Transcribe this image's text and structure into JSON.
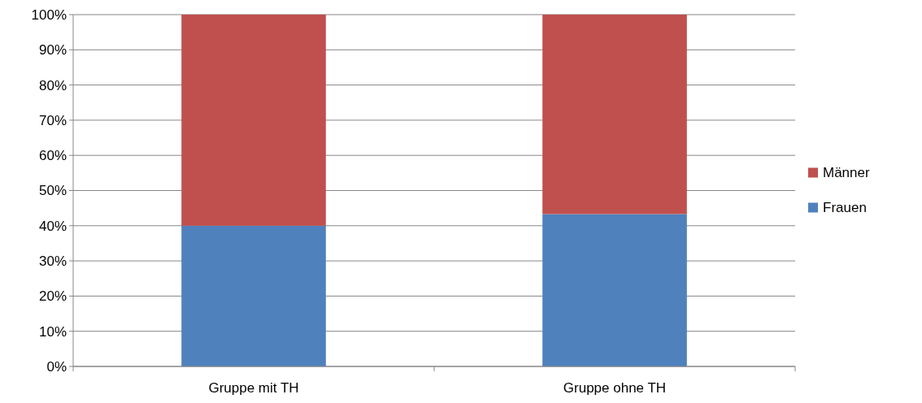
{
  "chart_data": {
    "type": "bar",
    "stacked": true,
    "categories": [
      "Gruppe mit TH",
      "Gruppe ohne TH"
    ],
    "series": [
      {
        "name": "Frauen",
        "color": "#4f81bd",
        "values": [
          40,
          43.3
        ]
      },
      {
        "name": "Männer",
        "color": "#c0504d",
        "values": [
          60,
          56.7
        ]
      }
    ],
    "ylim": [
      0,
      100
    ],
    "yticks": [
      {
        "value": 0,
        "label": "0%"
      },
      {
        "value": 10,
        "label": "10%"
      },
      {
        "value": 20,
        "label": "20%"
      },
      {
        "value": 30,
        "label": "30%"
      },
      {
        "value": 40,
        "label": "40%"
      },
      {
        "value": 50,
        "label": "50%"
      },
      {
        "value": 60,
        "label": "60%"
      },
      {
        "value": 70,
        "label": "70%"
      },
      {
        "value": 80,
        "label": "80%"
      },
      {
        "value": 90,
        "label": "90%"
      },
      {
        "value": 100,
        "label": "100%"
      }
    ],
    "grid": "y",
    "legend": "right"
  }
}
